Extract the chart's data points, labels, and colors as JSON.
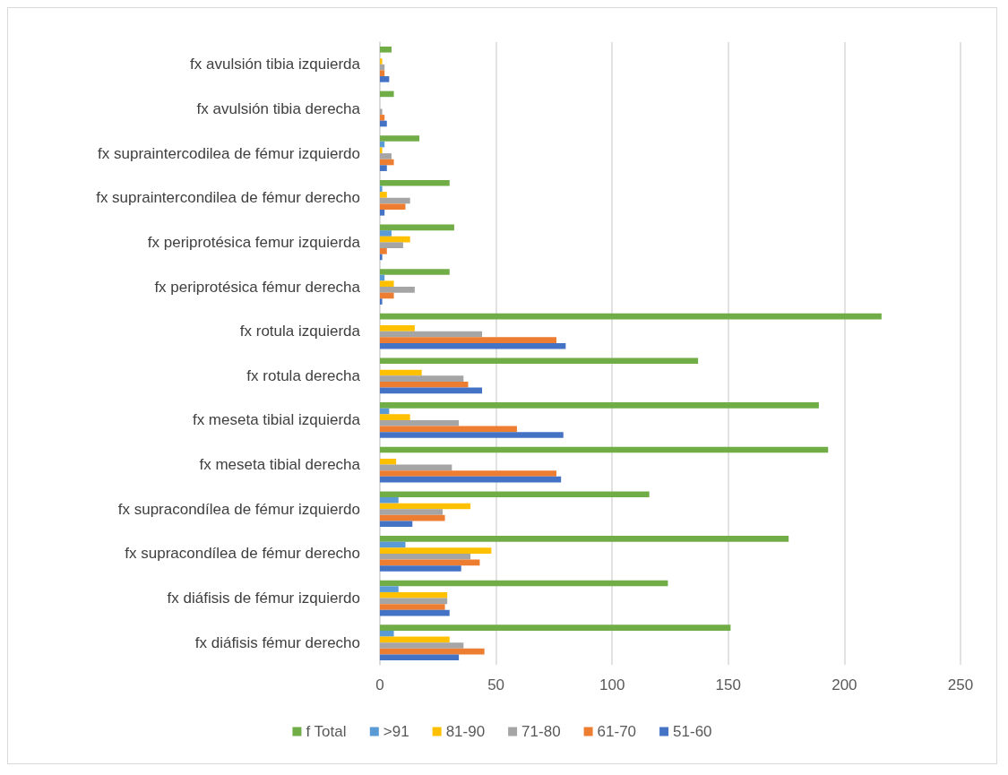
{
  "chart_data": {
    "type": "bar",
    "orientation": "horizontal",
    "categories": [
      "fx avulsión tibia izquierda",
      "fx avulsión tibia derecha",
      "fx supraintercodilea de fémur izquierdo",
      "fx supraintercondilea de fémur derecho",
      "fx periprotésica femur izquierda",
      "fx periprotésica fémur derecha",
      "fx rotula izquierda",
      "fx rotula derecha",
      "fx meseta tibial izquierda",
      "fx meseta tibial derecha",
      "fx supracondílea de fémur izquierdo",
      "fx supracondílea de fémur derecho",
      "fx diáfisis de fémur izquierdo",
      "fx diáfisis fémur derecho"
    ],
    "series": [
      {
        "name": "f Total",
        "color": "#70ad47",
        "values": [
          5,
          6,
          17,
          30,
          32,
          30,
          216,
          137,
          189,
          193,
          116,
          176,
          124,
          151
        ]
      },
      {
        "name": ">91",
        "color": "#5b9bd5",
        "values": [
          0,
          0,
          2,
          1,
          5,
          2,
          0,
          0,
          4,
          0,
          8,
          11,
          8,
          6
        ]
      },
      {
        "name": "81-90",
        "color": "#ffc000",
        "values": [
          1,
          0,
          1,
          3,
          13,
          6,
          15,
          18,
          13,
          7,
          39,
          48,
          29,
          30
        ]
      },
      {
        "name": "71-80",
        "color": "#a5a5a5",
        "values": [
          2,
          1,
          5,
          13,
          10,
          15,
          44,
          36,
          34,
          31,
          27,
          39,
          29,
          36
        ]
      },
      {
        "name": "61-70",
        "color": "#ed7d31",
        "values": [
          2,
          2,
          6,
          11,
          3,
          6,
          76,
          38,
          59,
          76,
          28,
          43,
          28,
          45
        ]
      },
      {
        "name": "51-60",
        "color": "#4472c4",
        "values": [
          4,
          3,
          3,
          2,
          1,
          1,
          80,
          44,
          79,
          78,
          14,
          35,
          30,
          34
        ]
      }
    ],
    "xlim": [
      0,
      250
    ],
    "xticks": [
      0,
      50,
      100,
      150,
      200,
      250
    ],
    "grid": "x",
    "legend": "bottom"
  }
}
